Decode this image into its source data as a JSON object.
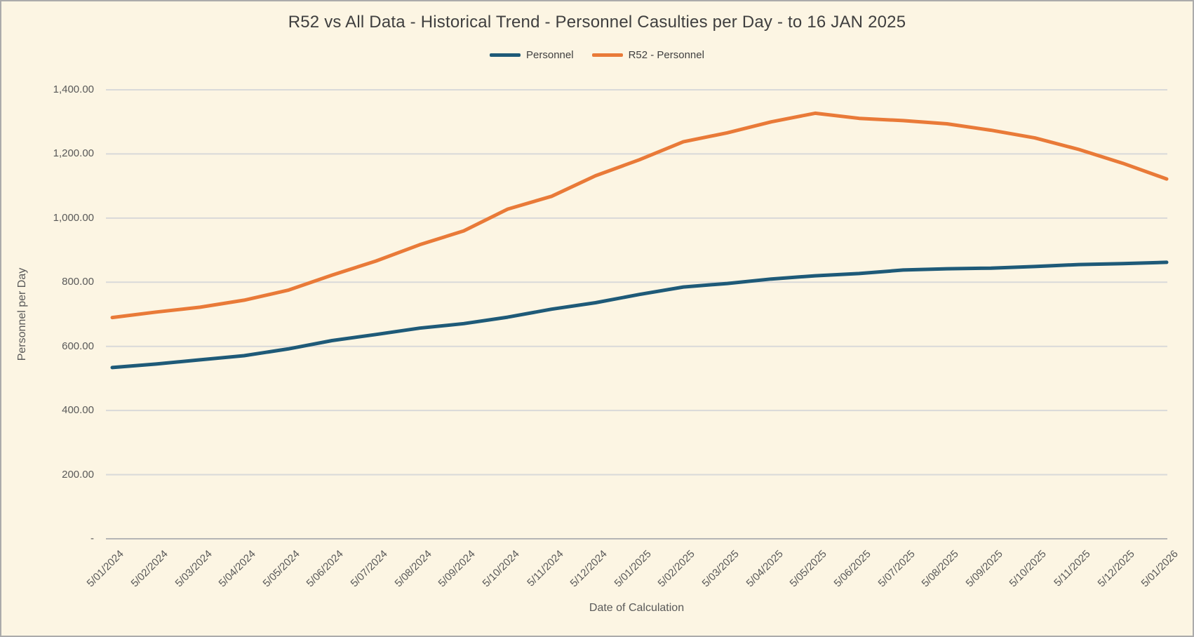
{
  "window": {
    "background_color": "#FCF5E3",
    "border_color": "#ABABAB",
    "grid_color": "#D9D9D9",
    "axis_line_color": "#B5B5B5",
    "label_color": "#595959",
    "title_color": "#3F3F3F"
  },
  "chart_data": {
    "type": "line",
    "title": "R52 vs All Data - Historical Trend - Personnel Casulties per Day - to 16 JAN 2025",
    "xlabel": "Date of Calculation",
    "ylabel": "Personnel per Day",
    "ylim": [
      0,
      1400
    ],
    "grid": true,
    "legend_position": "top",
    "y_tick_labels": [
      "-",
      "200.00",
      "400.00",
      "600.00",
      "800.00",
      "1,000.00",
      "1,200.00",
      "1,400.00"
    ],
    "y_tick_values": [
      0,
      200,
      400,
      600,
      800,
      1000,
      1200,
      1400
    ],
    "categories": [
      "5/01/2024",
      "5/02/2024",
      "5/03/2024",
      "5/04/2024",
      "5/05/2024",
      "5/06/2024",
      "5/07/2024",
      "5/08/2024",
      "5/09/2024",
      "5/10/2024",
      "5/11/2024",
      "5/12/2024",
      "5/01/2025",
      "5/02/2025",
      "5/03/2025",
      "5/04/2025",
      "5/05/2025",
      "5/06/2025",
      "5/07/2025",
      "5/08/2025",
      "5/09/2025",
      "5/10/2025",
      "5/11/2025",
      "5/12/2025",
      "5/01/2026"
    ],
    "series": [
      {
        "name": "Personnel",
        "color": "#1E5A78",
        "values": [
          534,
          545,
          558,
          571,
          592,
          618,
          637,
          657,
          671,
          691,
          716,
          736,
          762,
          785,
          796,
          810,
          820,
          827,
          838,
          842,
          844,
          849,
          855,
          858,
          862
        ]
      },
      {
        "name": "R52 - Personnel",
        "color": "#E97A38",
        "values": [
          690,
          707,
          722,
          744,
          775,
          822,
          866,
          917,
          960,
          1028,
          1068,
          1132,
          1182,
          1238,
          1266,
          1300,
          1327,
          1311,
          1304,
          1294,
          1274,
          1250,
          1214,
          1171,
          1122
        ]
      }
    ]
  }
}
